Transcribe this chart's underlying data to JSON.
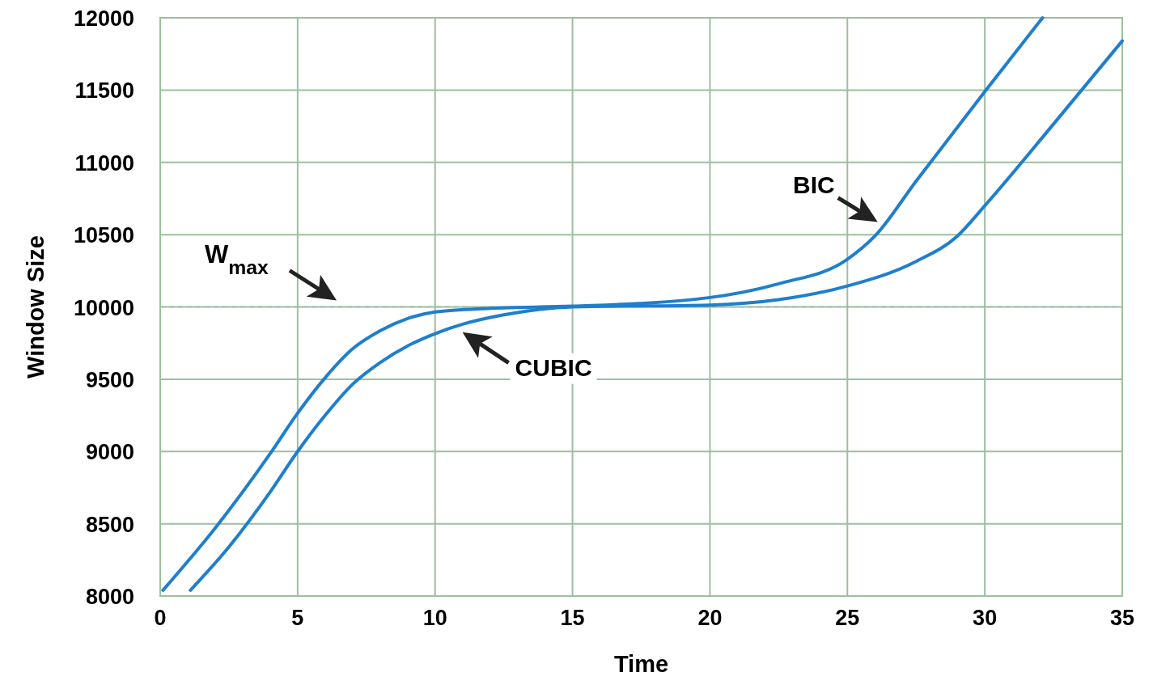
{
  "chart_data": {
    "type": "line",
    "xlabel": "Time",
    "ylabel": "Window Size",
    "xlim": [
      0,
      35
    ],
    "ylim": [
      8000,
      12000
    ],
    "xticks": [
      0,
      5,
      10,
      15,
      20,
      25,
      30,
      35
    ],
    "yticks": [
      8000,
      8500,
      9000,
      9500,
      10000,
      10500,
      11000,
      11500,
      12000
    ],
    "grid": true,
    "marker": "none",
    "line_style": "solid",
    "ref_lines": [
      {
        "axis": "y",
        "value": 10000,
        "label": "W$_{max}$",
        "color": "#9dbf9f",
        "line_style": "dashed"
      }
    ],
    "series": [
      {
        "name": "BIC",
        "color": "#1f7fcc",
        "x": [
          0.1,
          2,
          4,
          5,
          6,
          7,
          8,
          9,
          10,
          12,
          15,
          20,
          22.5,
          25,
          26,
          27.5,
          30,
          32.1
        ],
        "values": [
          8040,
          8470,
          8985,
          9265,
          9510,
          9710,
          9835,
          9920,
          9965,
          9990,
          10005,
          10065,
          10160,
          10330,
          10490,
          10870,
          11490,
          12000
        ]
      },
      {
        "name": "CUBIC",
        "color": "#1f7fcc",
        "x": [
          1.1,
          2.5,
          4,
          5,
          6,
          7,
          8,
          9,
          10,
          11,
          12.5,
          15,
          20,
          22.5,
          25,
          27.5,
          29,
          30,
          32.5,
          35
        ],
        "values": [
          8040,
          8340,
          8720,
          9000,
          9250,
          9465,
          9615,
          9730,
          9815,
          9880,
          9945,
          10000,
          10013,
          10050,
          10145,
          10315,
          10490,
          10700,
          11265,
          11840
        ]
      }
    ]
  }
}
